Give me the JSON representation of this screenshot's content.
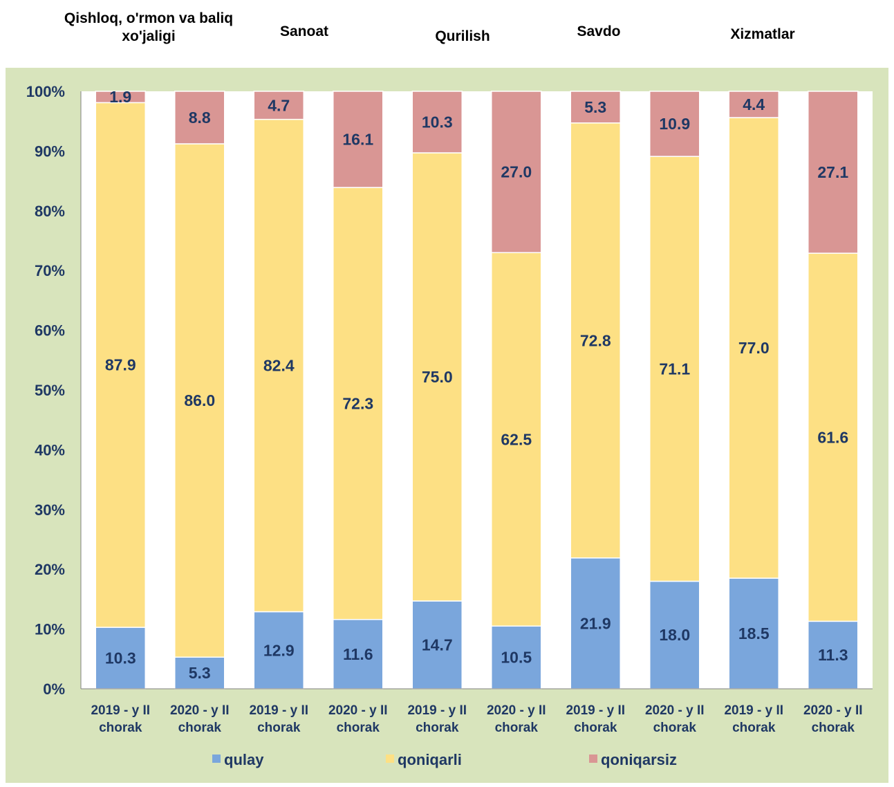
{
  "chart_data": {
    "type": "bar",
    "stacked": true,
    "percent_stacked": true,
    "groups": [
      "Qishloq, o'rmon va baliq xo'jaligi",
      "Sanoat",
      "Qurilish",
      "Savdo",
      "Xizmatlar"
    ],
    "categories": [
      [
        "2019 - y II",
        "chorak"
      ],
      [
        "2020 - y II",
        "chorak"
      ],
      [
        "2019 - y II",
        "chorak"
      ],
      [
        "2020 - y II",
        "chorak"
      ],
      [
        "2019 - y II",
        "chorak"
      ],
      [
        "2020 - y II",
        "chorak"
      ],
      [
        "2019 - y II",
        "chorak"
      ],
      [
        "2020 - y II",
        "chorak"
      ],
      [
        "2019 - y II",
        "chorak"
      ],
      [
        "2020 - y II",
        "chorak"
      ]
    ],
    "series": [
      {
        "name": "qulay",
        "color": "#7aa6dc",
        "values": [
          10.3,
          5.3,
          12.9,
          11.6,
          14.7,
          10.5,
          21.9,
          18.0,
          18.5,
          11.3
        ]
      },
      {
        "name": "qoniqarli",
        "color": "#fde084",
        "values": [
          87.9,
          86.0,
          82.4,
          72.3,
          75.0,
          62.5,
          72.8,
          71.1,
          77.0,
          61.6
        ]
      },
      {
        "name": "qoniqarsiz",
        "color": "#d99694",
        "values": [
          1.9,
          8.8,
          4.7,
          16.1,
          10.3,
          27.0,
          5.3,
          10.9,
          4.4,
          27.1
        ]
      }
    ],
    "y_ticks": [
      "0%",
      "10%",
      "20%",
      "30%",
      "40%",
      "50%",
      "60%",
      "70%",
      "80%",
      "90%",
      "100%"
    ],
    "ylim": [
      0,
      100
    ],
    "legend_position": "bottom",
    "grid": false,
    "plot_background": "#ffffff",
    "panel_background": "#d8e4bc",
    "label_color": "#1f3864"
  }
}
